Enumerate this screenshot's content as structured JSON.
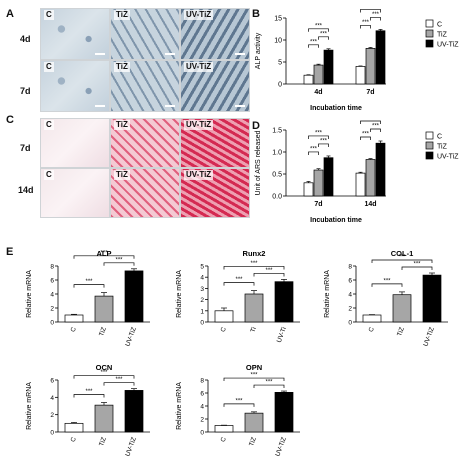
{
  "panels": {
    "A": {
      "letter": "A",
      "rows": [
        "4d",
        "7d"
      ],
      "cols": [
        "C",
        "TiZ",
        "UV-TiZ"
      ]
    },
    "C": {
      "letter": "C",
      "rows": [
        "7d",
        "14d"
      ],
      "cols": [
        "C",
        "TiZ",
        "UV-TiZ"
      ]
    },
    "B_letter": "B",
    "D_letter": "D",
    "E_letter": "E"
  },
  "colors": {
    "C": "#ffffff",
    "TiZ": "#a6a6a6",
    "UV-TiZ": "#000000"
  },
  "sig": "***",
  "chart_data": [
    {
      "id": "B",
      "type": "bar",
      "categories": [
        "4d",
        "7d"
      ],
      "series": [
        {
          "name": "C",
          "values": [
            2,
            4
          ],
          "errors": [
            0.1,
            0.1
          ]
        },
        {
          "name": "TiZ",
          "values": [
            4.3,
            8.1
          ],
          "errors": [
            0.2,
            0.2
          ]
        },
        {
          "name": "UV-TiZ",
          "values": [
            7.7,
            12.1
          ],
          "errors": [
            0.3,
            0.3
          ]
        }
      ],
      "xlabel": "Incubation time",
      "ylabel": "ALP activity",
      "ylim": [
        0,
        15
      ],
      "yticks": [
        0,
        5,
        10,
        15
      ],
      "legend": "right"
    },
    {
      "id": "D",
      "type": "bar",
      "categories": [
        "7d",
        "14d"
      ],
      "series": [
        {
          "name": "C",
          "values": [
            0.3,
            0.52
          ],
          "errors": [
            0.03,
            0.02
          ]
        },
        {
          "name": "TiZ",
          "values": [
            0.59,
            0.83
          ],
          "errors": [
            0.03,
            0.02
          ]
        },
        {
          "name": "UV-TiZ",
          "values": [
            0.87,
            1.2
          ],
          "errors": [
            0.04,
            0.05
          ]
        }
      ],
      "xlabel": "Incubation time",
      "ylabel": "Unit of ARS released",
      "ylim": [
        0,
        1.5
      ],
      "yticks": [
        "0.0",
        "0.5",
        "1.0",
        "1.5"
      ],
      "legend": "right"
    },
    {
      "id": "E1",
      "type": "bar",
      "title": "ALP",
      "categories": [
        "C",
        "TiZ",
        "UV-TiZ"
      ],
      "values": [
        1,
        3.7,
        7.3
      ],
      "errors": [
        0.1,
        0.5,
        0.3
      ],
      "ylabel": "Relative mRNA",
      "ylim": [
        0,
        8
      ],
      "yticks": [
        0,
        2,
        4,
        6,
        8
      ]
    },
    {
      "id": "E2",
      "type": "bar",
      "title": "Runx2",
      "categories": [
        "C",
        "Ti",
        "UV-Ti"
      ],
      "values": [
        1,
        2.5,
        3.6
      ],
      "errors": [
        0.25,
        0.3,
        0.2
      ],
      "ylabel": "Relative mRNA",
      "ylim": [
        0,
        5
      ],
      "yticks": [
        0,
        1,
        2,
        3,
        4,
        5
      ]
    },
    {
      "id": "E3",
      "type": "bar",
      "title": "COL-1",
      "categories": [
        "C",
        "TiZ",
        "UV-TiZ"
      ],
      "values": [
        1,
        3.9,
        6.7
      ],
      "errors": [
        0.05,
        0.4,
        0.3
      ],
      "ylabel": "Relative mRNA",
      "ylim": [
        0,
        8
      ],
      "yticks": [
        0,
        2,
        4,
        6,
        8
      ]
    },
    {
      "id": "E4",
      "type": "bar",
      "title": "OCN",
      "categories": [
        "C",
        "TiZ",
        "UV-TiZ"
      ],
      "values": [
        1,
        3.1,
        4.8
      ],
      "errors": [
        0.1,
        0.3,
        0.2
      ],
      "ylabel": "Relative mRNA",
      "ylim": [
        0,
        6
      ],
      "yticks": [
        0,
        2,
        4,
        6
      ]
    },
    {
      "id": "E5",
      "type": "bar",
      "title": "OPN",
      "categories": [
        "C",
        "TiZ",
        "UV-TiZ"
      ],
      "values": [
        1,
        2.9,
        6.1
      ],
      "errors": [
        0.05,
        0.2,
        0.2
      ],
      "ylabel": "Relative mRNA",
      "ylim": [
        0,
        8
      ],
      "yticks": [
        0,
        2,
        4,
        6,
        8
      ]
    }
  ]
}
